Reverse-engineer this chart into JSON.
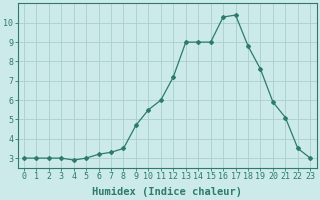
{
  "x": [
    0,
    1,
    2,
    3,
    4,
    5,
    6,
    7,
    8,
    9,
    10,
    11,
    12,
    13,
    14,
    15,
    16,
    17,
    18,
    19,
    20,
    21,
    22,
    23
  ],
  "y": [
    3.0,
    3.0,
    3.0,
    3.0,
    2.9,
    3.0,
    3.2,
    3.3,
    3.5,
    4.7,
    5.5,
    6.0,
    7.2,
    9.0,
    9.0,
    9.0,
    10.3,
    10.4,
    8.8,
    7.6,
    5.9,
    5.1,
    3.5,
    3.0
  ],
  "line_color": "#2d7a6e",
  "marker": "D",
  "marker_size": 2.0,
  "bg_color": "#cceaea",
  "grid_color": "#aacece",
  "xlabel": "Humidex (Indice chaleur)",
  "ylim": [
    2.5,
    11.0
  ],
  "xlim": [
    -0.5,
    23.5
  ],
  "yticks": [
    3,
    4,
    5,
    6,
    7,
    8,
    9,
    10
  ],
  "xticks": [
    0,
    1,
    2,
    3,
    4,
    5,
    6,
    7,
    8,
    9,
    10,
    11,
    12,
    13,
    14,
    15,
    16,
    17,
    18,
    19,
    20,
    21,
    22,
    23
  ],
  "tick_fontsize": 6,
  "xlabel_fontsize": 7.5
}
